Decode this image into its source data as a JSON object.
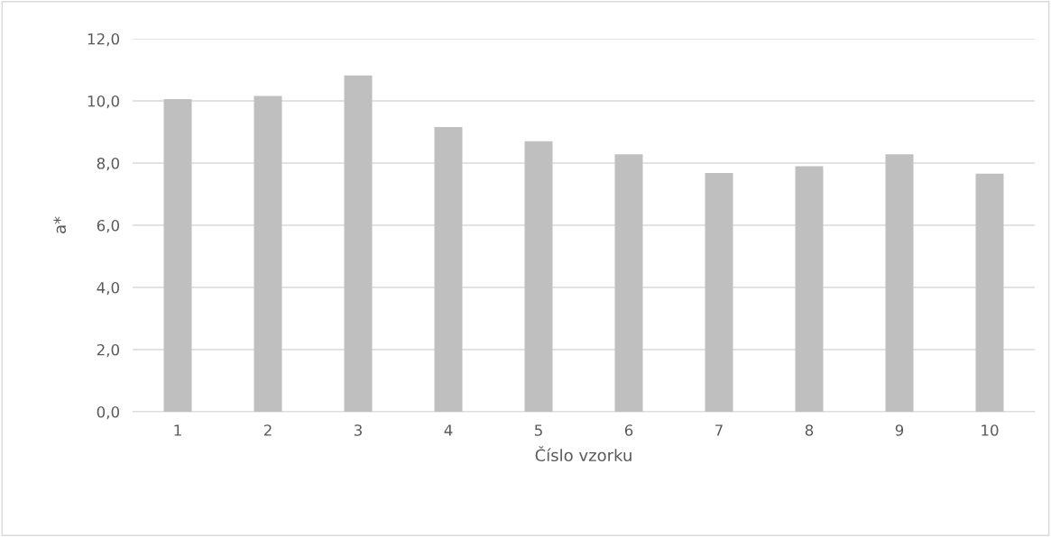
{
  "chart_data": {
    "type": "bar",
    "xlabel": "Číslo vzorku",
    "ylabel": "a*",
    "categories": [
      "1",
      "2",
      "3",
      "4",
      "5",
      "6",
      "7",
      "8",
      "9",
      "10"
    ],
    "values": [
      10.06,
      10.16,
      10.82,
      9.16,
      8.7,
      8.28,
      7.68,
      7.9,
      8.28,
      7.66
    ],
    "color": "#bfbfbf",
    "ylim": [
      0,
      12
    ],
    "yticks": [
      {
        "value": 0,
        "label": "0,0"
      },
      {
        "value": 2,
        "label": "2,0"
      },
      {
        "value": 4,
        "label": "4,0"
      },
      {
        "value": 6,
        "label": "6,0"
      },
      {
        "value": 8,
        "label": "8,0"
      },
      {
        "value": 10,
        "label": "10,0"
      },
      {
        "value": 12,
        "label": "12,0"
      }
    ],
    "grid": "y"
  }
}
